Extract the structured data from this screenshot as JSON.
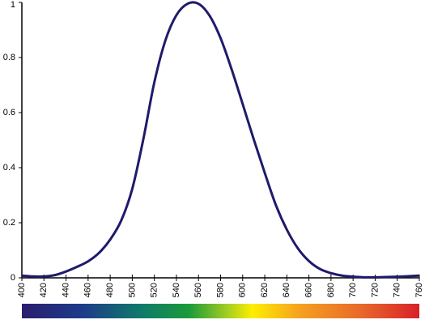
{
  "chart_data": {
    "type": "line",
    "x": [
      400,
      410,
      420,
      430,
      440,
      450,
      460,
      470,
      480,
      490,
      500,
      510,
      520,
      530,
      540,
      550,
      560,
      570,
      580,
      590,
      600,
      610,
      620,
      630,
      640,
      650,
      660,
      670,
      680,
      690,
      700,
      710,
      720,
      730,
      740,
      750,
      760
    ],
    "series": [
      {
        "color": "#1f1a6b",
        "values": [
          0.008,
          0.005,
          0.005,
          0.01,
          0.023,
          0.04,
          0.06,
          0.091,
          0.139,
          0.208,
          0.323,
          0.503,
          0.71,
          0.862,
          0.954,
          0.995,
          0.995,
          0.952,
          0.87,
          0.757,
          0.631,
          0.503,
          0.381,
          0.265,
          0.175,
          0.107,
          0.061,
          0.032,
          0.017,
          0.008,
          0.004,
          0.002,
          0.002,
          0.003,
          0.004,
          0.006,
          0.008
        ]
      }
    ],
    "xlim": [
      400,
      760
    ],
    "xticks": [
      400,
      420,
      440,
      460,
      480,
      500,
      520,
      540,
      560,
      580,
      600,
      620,
      640,
      660,
      680,
      700,
      720,
      740,
      760
    ],
    "ylim": [
      0,
      1
    ],
    "yticks": [
      0,
      0.2,
      0.4,
      0.6,
      0.8,
      1
    ],
    "grid": false
  }
}
